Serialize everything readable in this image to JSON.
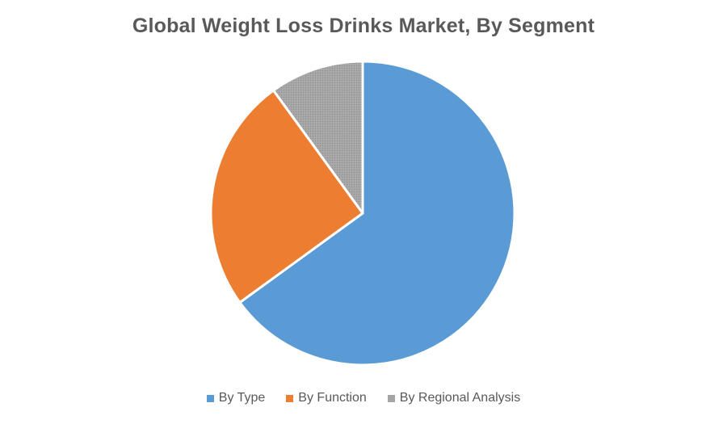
{
  "chart_data": {
    "type": "pie",
    "title": "Global Weight Loss Drinks Market, By Segment",
    "categories": [
      "By Type",
      "By Function",
      "By Regional Analysis"
    ],
    "values": [
      65,
      25,
      10
    ],
    "colors": [
      "#5B9BD5",
      "#ED7D31",
      "#A5A5A5"
    ],
    "start_angle_deg": 0,
    "direction": "clockwise",
    "legend_position": "bottom",
    "slice_border_color": "#ffffff"
  }
}
